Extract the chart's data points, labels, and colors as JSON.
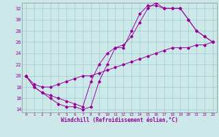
{
  "xlabel": "Windchill (Refroidissement éolien,°C)",
  "line_color": "#990099",
  "bg_color": "#cce8e8",
  "grid_color": "#99cccc",
  "xlim": [
    -0.5,
    23.5
  ],
  "ylim": [
    13.5,
    33.0
  ],
  "xticks": [
    0,
    1,
    2,
    3,
    4,
    5,
    6,
    7,
    8,
    9,
    10,
    11,
    12,
    13,
    14,
    15,
    16,
    17,
    18,
    19,
    20,
    21,
    22,
    23
  ],
  "yticks": [
    14,
    16,
    18,
    20,
    22,
    24,
    26,
    28,
    30,
    32
  ],
  "series_x": [
    0,
    1,
    2,
    3,
    4,
    5,
    6,
    7,
    8,
    9,
    10,
    11,
    12,
    13,
    14,
    15,
    16,
    17,
    18,
    19,
    20,
    21,
    22,
    23
  ],
  "series1_y": [
    20,
    18,
    17,
    16,
    15,
    14.5,
    14.5,
    14,
    14.5,
    19,
    22,
    25,
    25,
    28,
    31,
    32.5,
    32.5,
    32,
    32,
    32,
    30,
    28,
    27,
    26
  ],
  "series2_y": [
    20,
    18.5,
    18,
    18,
    18.5,
    19,
    19.5,
    20,
    20,
    20.5,
    21,
    21.5,
    22,
    22.5,
    23,
    23.5,
    24,
    24.5,
    25,
    25,
    25,
    25.5,
    25.5,
    26
  ],
  "series3_y": [
    20,
    18,
    17,
    16.5,
    16,
    15.5,
    15,
    14.5,
    19,
    22,
    24,
    25,
    25.5,
    27,
    29.5,
    32,
    33,
    32,
    32,
    32,
    30,
    28,
    27,
    26
  ]
}
